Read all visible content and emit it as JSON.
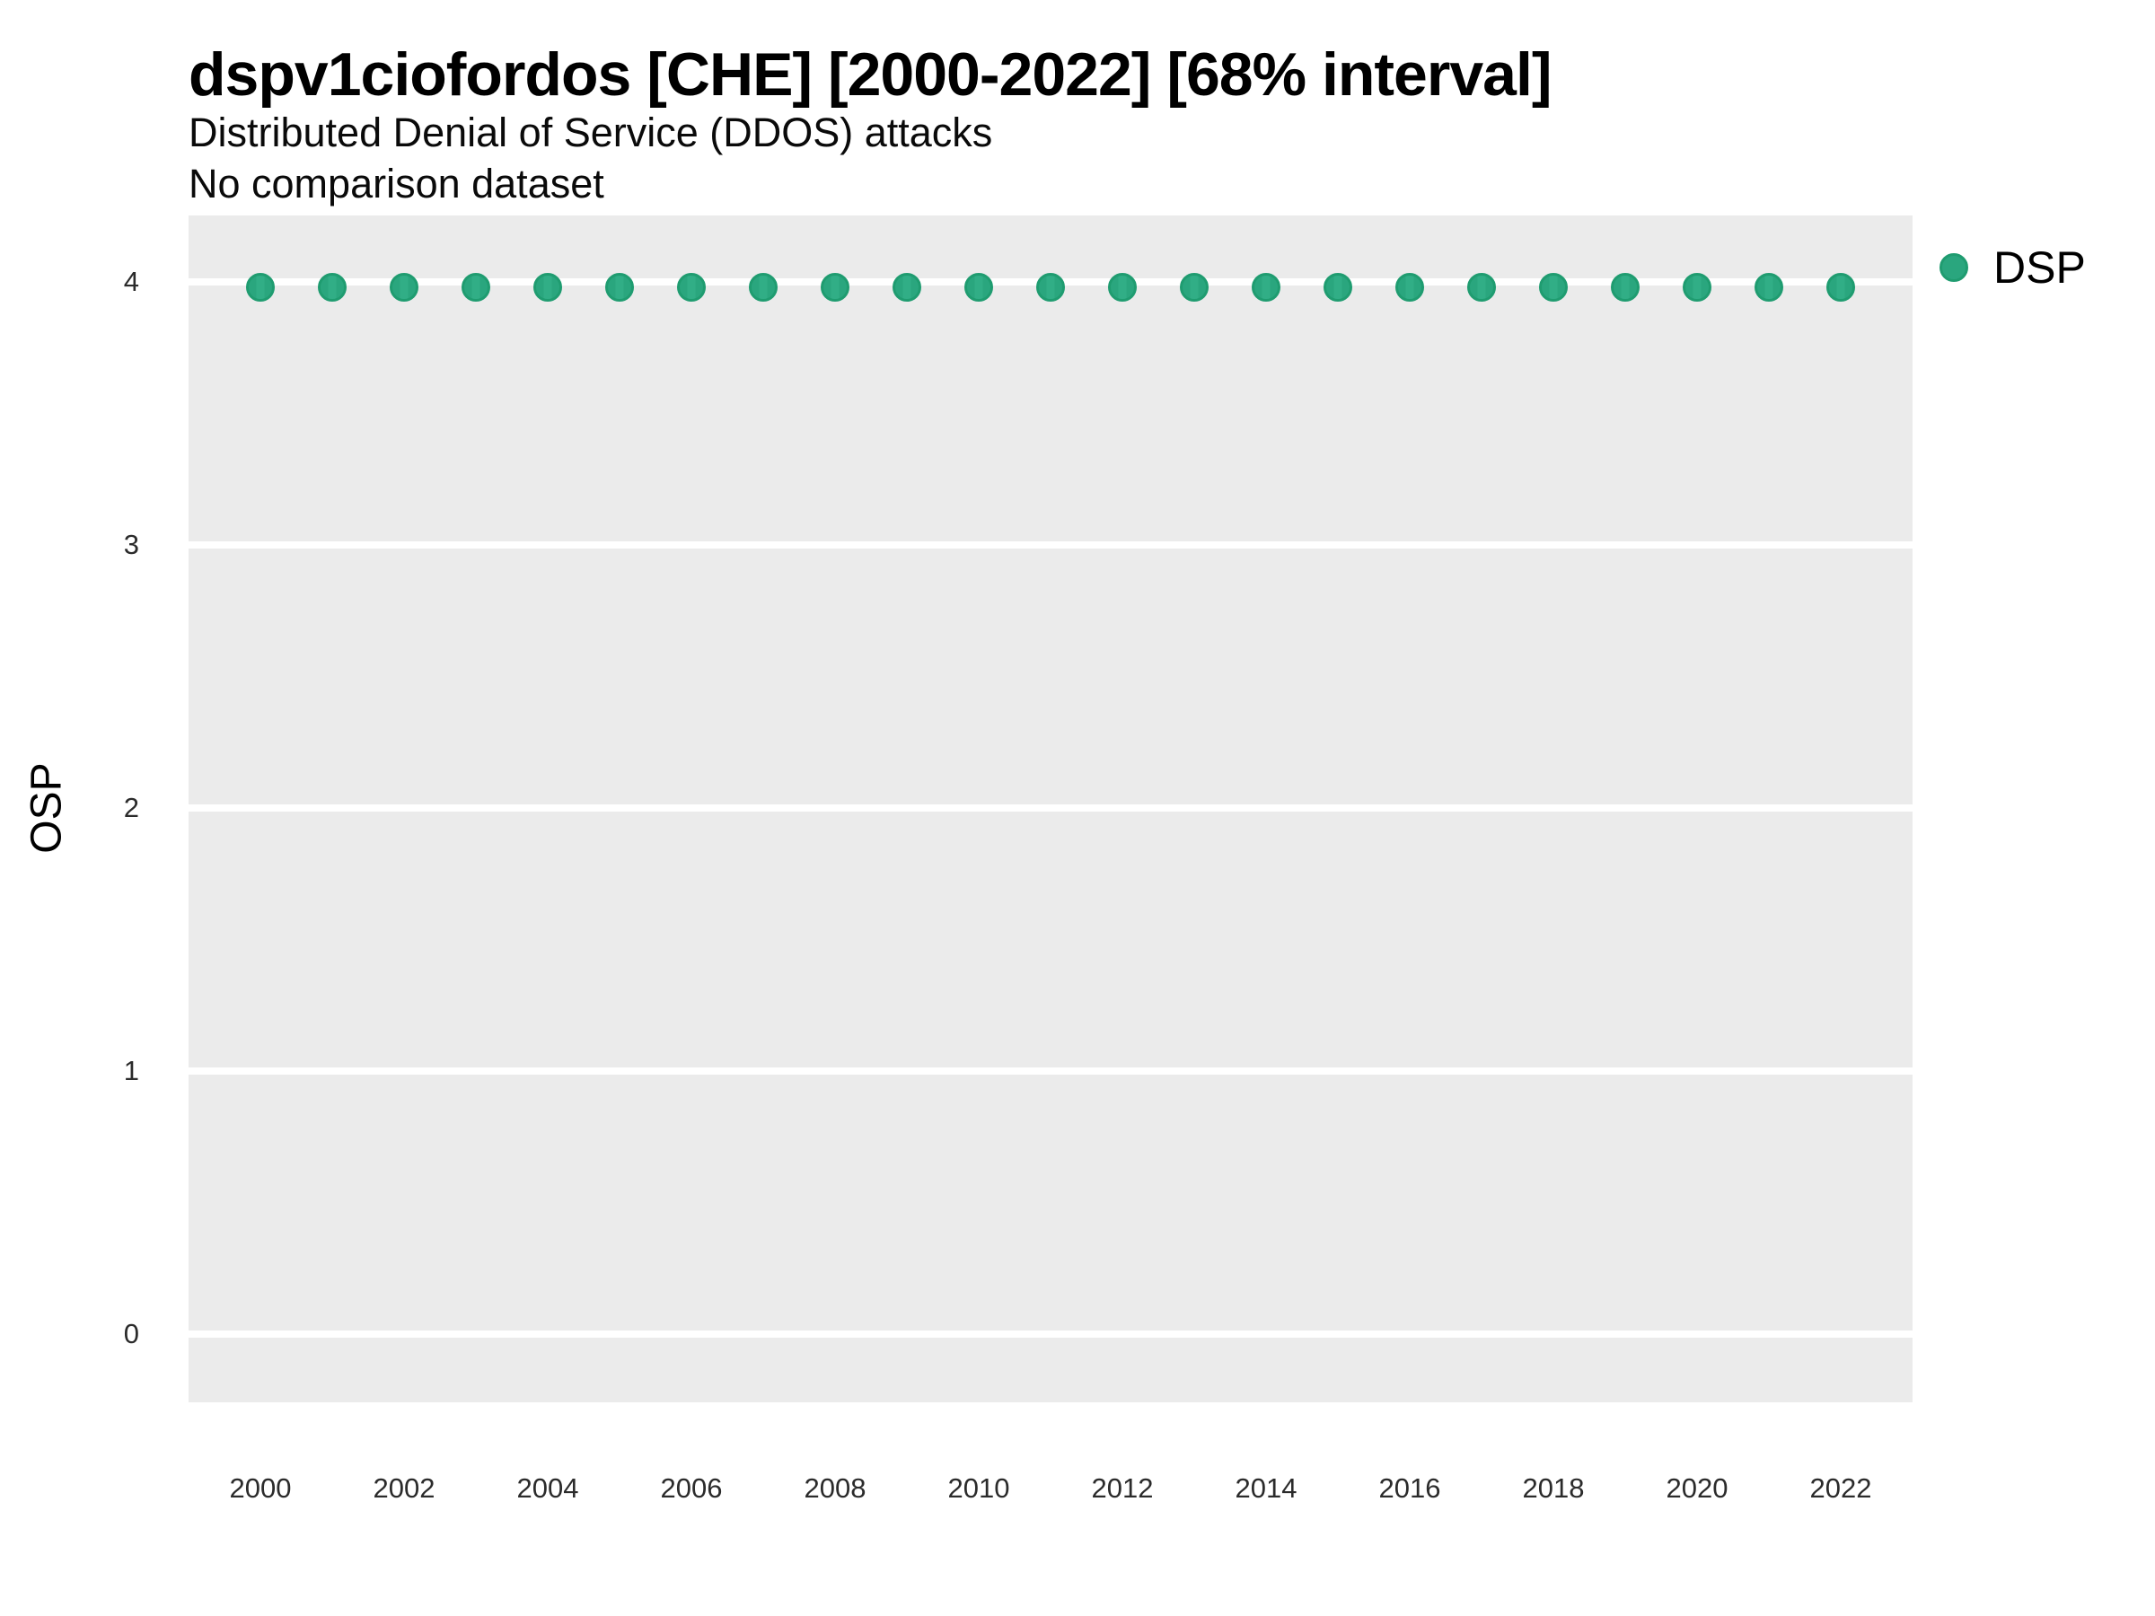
{
  "chart": {
    "title": "dspv1ciofordos [CHE] [2000-2022] [68% interval]",
    "subtitle": "Distributed Denial of Service (DDOS) attacks",
    "note": "No comparison dataset",
    "ylabel": "OSP",
    "legend": {
      "label": "DSP",
      "marker": "circle-icon"
    },
    "colors": {
      "point_fill": "#2AA67E",
      "point_stroke": "#1F9C70",
      "panel_background": "#EBEBEB",
      "gridline": "#FFFFFF"
    }
  },
  "chart_data": {
    "type": "scatter",
    "title": "dspv1ciofordos [CHE] [2000-2022] [68% interval]",
    "subtitle": "Distributed Denial of Service (DDOS) attacks",
    "note": "No comparison dataset",
    "xlabel": "",
    "ylabel": "OSP",
    "x": [
      2000,
      2001,
      2002,
      2003,
      2004,
      2005,
      2006,
      2007,
      2008,
      2009,
      2010,
      2011,
      2012,
      2013,
      2014,
      2015,
      2016,
      2017,
      2018,
      2019,
      2020,
      2021,
      2022
    ],
    "series": [
      {
        "name": "DSP",
        "values": [
          3.98,
          3.98,
          3.98,
          3.98,
          3.98,
          3.98,
          3.98,
          3.98,
          3.98,
          3.98,
          3.98,
          3.98,
          3.98,
          3.98,
          3.98,
          3.98,
          3.98,
          3.98,
          3.98,
          3.98,
          3.98,
          3.98,
          3.98
        ]
      }
    ],
    "ylim": [
      -0.25,
      4.26
    ],
    "yticks": [
      0,
      1,
      2,
      3,
      4
    ],
    "xticks": [
      2000,
      2002,
      2004,
      2006,
      2008,
      2010,
      2012,
      2014,
      2016,
      2018,
      2020,
      2022
    ],
    "grid": "horizontal major gridlines only, white on gray panel",
    "legend_position": "right-top"
  }
}
